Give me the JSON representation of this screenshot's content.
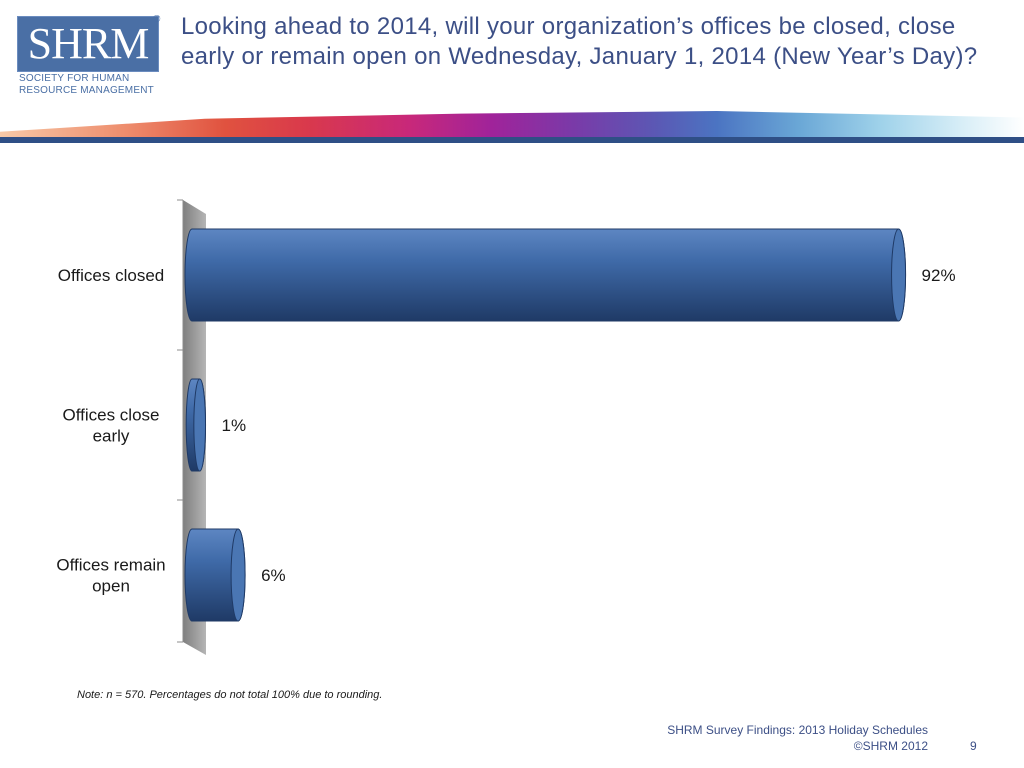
{
  "logo": {
    "mark": "SHRM",
    "registered": "®",
    "subtitle_line1": "Society for Human",
    "subtitle_line2": "Resource Management"
  },
  "title": "Looking ahead to 2014, will your organization’s offices be closed, close early or remain open on Wednesday, January 1, 2014 (New Year’s Day)?",
  "colors": {
    "bar": "#3f6aa8",
    "bar_dark": "#1f3a66",
    "wall": "#9a9a9a",
    "title": "#3c4f86"
  },
  "chart_data": {
    "type": "bar",
    "orientation": "horizontal",
    "categories": [
      "Offices closed",
      "Offices close early",
      "Offices remain open"
    ],
    "category_lines": [
      [
        "Offices closed"
      ],
      [
        "Offices close",
        "early"
      ],
      [
        "Offices remain",
        "open"
      ]
    ],
    "values": [
      92,
      1,
      6
    ],
    "labels": [
      "92%",
      "1%",
      "6%"
    ],
    "xlim": [
      0,
      100
    ],
    "grid": false,
    "legend": "none"
  },
  "note": "Note: n = 570. Percentages do not total 100% due to rounding.",
  "footer": {
    "line1": "SHRM Survey Findings: 2013 Holiday Schedules",
    "line2": "©SHRM 2012",
    "page": "9"
  }
}
